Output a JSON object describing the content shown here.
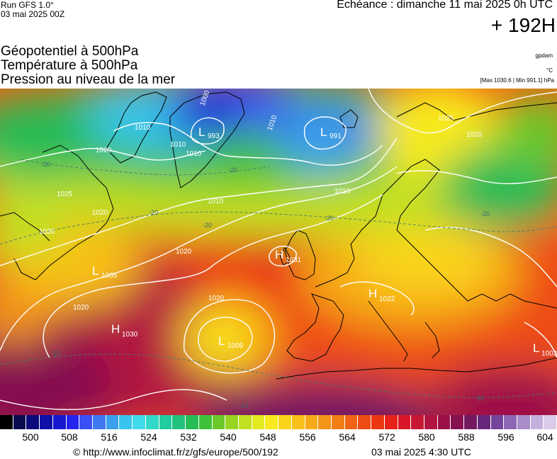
{
  "header": {
    "run_title": "Run GFS 1.0°",
    "run_date": "03 mai 2025 00Z",
    "echeance": "Echéance : dimanche 11 mai 2025 0h UTC",
    "forecast_hour": "+ 192H",
    "params": [
      "Géopotentiel à 500hPa",
      "Température à 500hPa",
      "Pression au niveau de la mer"
    ],
    "unit_geo": "gpdam",
    "unit_temp": "°C",
    "max_min": "[Max 1030.6 | Min 991.1] hPa"
  },
  "pressure_centers": [
    {
      "type": "L",
      "value": "993"
    },
    {
      "type": "L",
      "value": "991"
    },
    {
      "type": "H",
      "value": "1031"
    },
    {
      "type": "L",
      "value": "1005"
    },
    {
      "type": "H",
      "value": "1030"
    },
    {
      "type": "L",
      "value": "1006"
    },
    {
      "type": "H",
      "value": "1022"
    },
    {
      "type": "L",
      "value": "1003"
    }
  ],
  "isobar_labels": [
    "1000",
    "1010",
    "1010",
    "1010",
    "1010",
    "1020",
    "1025",
    "1020",
    "1020",
    "1025",
    "1020",
    "1020",
    "1020",
    "1020",
    "1010",
    "1010"
  ],
  "temp_labels": [
    "-20",
    "-20",
    "-20",
    "-20",
    "-20",
    "-10",
    "-10",
    "-10",
    "-20"
  ],
  "colorbar": {
    "colors": [
      "#000000",
      "#0a0a50",
      "#0b0b7a",
      "#1010a8",
      "#1818d0",
      "#2424ee",
      "#3a50f5",
      "#3e78f2",
      "#3aa0ee",
      "#38c4ec",
      "#40daea",
      "#30d8c8",
      "#20cca0",
      "#22c27c",
      "#26bc56",
      "#3ec03a",
      "#6cc82a",
      "#98d422",
      "#c2e020",
      "#e4ea20",
      "#f8ea1e",
      "#fad41a",
      "#f8c018",
      "#f6aa18",
      "#f49418",
      "#f27e16",
      "#f06414",
      "#ee4c12",
      "#ec3612",
      "#e6221a",
      "#d81828",
      "#c61834",
      "#b21440",
      "#9c1048",
      "#861050",
      "#741860",
      "#68287c",
      "#74449a",
      "#8c68b4",
      "#a88cc8",
      "#c4b0dc",
      "#dacce8"
    ],
    "labels": [
      "500",
      "508",
      "516",
      "524",
      "532",
      "540",
      "548",
      "556",
      "564",
      "572",
      "580",
      "588",
      "596",
      "604"
    ]
  },
  "footer": {
    "credit": "© http://www.infoclimat.fr/z/gfs/europe/500/192",
    "issued": "03 mai 2025  4:30 UTC"
  }
}
